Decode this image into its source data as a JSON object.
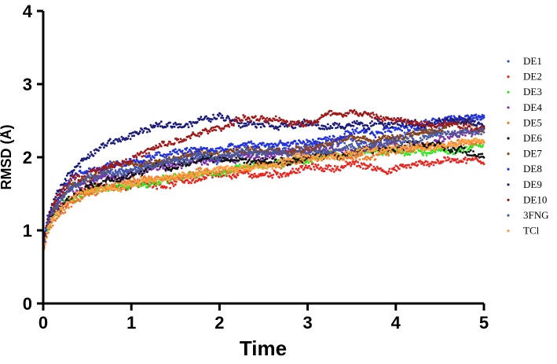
{
  "chart_data": {
    "type": "scatter",
    "title": "",
    "xlabel": "Time",
    "ylabel": "RMSD (Å)",
    "xlim": [
      0,
      5
    ],
    "ylim": [
      0,
      4
    ],
    "xticks": [
      "0",
      "1",
      "2",
      "3",
      "4",
      "5"
    ],
    "yticks": [
      "0",
      "1",
      "2",
      "3",
      "4"
    ],
    "grid": false,
    "legend_position": "right",
    "x": [
      0.0,
      0.05,
      0.1,
      0.2,
      0.3,
      0.5,
      0.75,
      1.0,
      1.25,
      1.5,
      1.75,
      2.0,
      2.25,
      2.5,
      2.75,
      3.0,
      3.25,
      3.5,
      3.75,
      4.0,
      4.25,
      4.5,
      4.75,
      5.0
    ],
    "series": [
      {
        "name": "DE1",
        "color": "#3b4fc4",
        "values": [
          0.75,
          1.1,
          1.25,
          1.4,
          1.55,
          1.7,
          1.8,
          1.85,
          1.9,
          1.95,
          2.0,
          2.0,
          2.05,
          2.05,
          2.1,
          2.1,
          2.15,
          2.2,
          2.25,
          2.3,
          2.35,
          2.4,
          2.5,
          2.55
        ]
      },
      {
        "name": "DE2",
        "color": "#e8251f",
        "values": [
          0.7,
          1.05,
          1.2,
          1.35,
          1.45,
          1.55,
          1.6,
          1.6,
          1.65,
          1.65,
          1.7,
          1.7,
          1.75,
          1.75,
          1.8,
          1.85,
          1.85,
          1.9,
          1.85,
          1.85,
          1.9,
          1.95,
          2.0,
          1.95
        ]
      },
      {
        "name": "DE3",
        "color": "#2ee61c",
        "values": [
          0.7,
          1.05,
          1.15,
          1.3,
          1.4,
          1.55,
          1.6,
          1.6,
          1.65,
          1.7,
          1.75,
          1.8,
          1.8,
          1.85,
          1.9,
          1.95,
          2.0,
          2.05,
          2.05,
          2.05,
          2.1,
          2.1,
          2.1,
          2.15
        ]
      },
      {
        "name": "DE4",
        "color": "#7b2fa8",
        "values": [
          0.75,
          1.1,
          1.2,
          1.35,
          1.5,
          1.65,
          1.75,
          1.8,
          1.85,
          1.9,
          1.95,
          1.95,
          2.0,
          2.0,
          2.05,
          2.05,
          2.1,
          2.1,
          2.15,
          2.2,
          2.2,
          2.25,
          2.3,
          2.35
        ]
      },
      {
        "name": "DE5",
        "color": "#f07a2a",
        "values": [
          0.7,
          1.0,
          1.15,
          1.25,
          1.35,
          1.5,
          1.6,
          1.65,
          1.7,
          1.75,
          1.8,
          1.85,
          1.85,
          1.9,
          1.9,
          1.95,
          2.0,
          2.0,
          2.05,
          2.1,
          2.1,
          2.15,
          2.2,
          2.2
        ]
      },
      {
        "name": "DE6",
        "color": "#111111",
        "values": [
          0.75,
          1.1,
          1.2,
          1.35,
          1.45,
          1.6,
          1.7,
          1.75,
          1.85,
          1.9,
          1.95,
          1.95,
          1.95,
          2.0,
          2.0,
          2.0,
          2.05,
          2.05,
          2.1,
          2.1,
          2.15,
          2.15,
          2.1,
          2.05
        ]
      },
      {
        "name": "DE7",
        "color": "#8b4513",
        "values": [
          0.75,
          1.1,
          1.25,
          1.45,
          1.6,
          1.75,
          1.85,
          1.9,
          1.95,
          2.0,
          2.05,
          2.05,
          2.1,
          2.1,
          2.15,
          2.15,
          2.2,
          2.25,
          2.25,
          2.3,
          2.35,
          2.4,
          2.45,
          2.4
        ]
      },
      {
        "name": "DE8",
        "color": "#2233dd",
        "values": [
          0.8,
          1.15,
          1.3,
          1.5,
          1.65,
          1.8,
          1.9,
          1.95,
          2.0,
          2.05,
          2.1,
          2.1,
          2.15,
          2.15,
          2.2,
          2.2,
          2.25,
          2.3,
          2.3,
          2.4,
          2.45,
          2.5,
          2.6,
          2.55
        ]
      },
      {
        "name": "DE9",
        "color": "#1a1a7a",
        "values": [
          0.8,
          1.15,
          1.35,
          1.6,
          1.8,
          2.0,
          2.2,
          2.3,
          2.4,
          2.45,
          2.5,
          2.55,
          2.5,
          2.5,
          2.45,
          2.45,
          2.4,
          2.45,
          2.45,
          2.5,
          2.45,
          2.45,
          2.5,
          2.45
        ]
      },
      {
        "name": "DE10",
        "color": "#a01818",
        "values": [
          0.75,
          1.1,
          1.3,
          1.5,
          1.65,
          1.8,
          1.9,
          2.0,
          2.1,
          2.2,
          2.3,
          2.4,
          2.55,
          2.5,
          2.45,
          2.5,
          2.6,
          2.65,
          2.55,
          2.5,
          2.45,
          2.5,
          2.45,
          2.4
        ]
      },
      {
        "name": "3FNG",
        "color": "#4a5a9a",
        "values": [
          0.75,
          1.1,
          1.25,
          1.4,
          1.55,
          1.7,
          1.8,
          1.85,
          1.9,
          1.95,
          2.0,
          2.0,
          2.05,
          2.05,
          2.05,
          2.1,
          2.1,
          2.15,
          2.15,
          2.2,
          2.25,
          2.3,
          2.35,
          2.35
        ]
      },
      {
        "name": "TCl",
        "color": "#ffa040",
        "values": [
          0.7,
          1.0,
          1.15,
          1.3,
          1.4,
          1.55,
          1.6,
          1.65,
          1.7,
          1.75,
          1.8,
          1.85,
          1.85,
          1.9,
          1.95,
          2.0,
          2.0,
          2.05,
          2.1,
          2.1,
          2.15,
          2.15,
          2.2,
          2.2
        ]
      }
    ]
  }
}
